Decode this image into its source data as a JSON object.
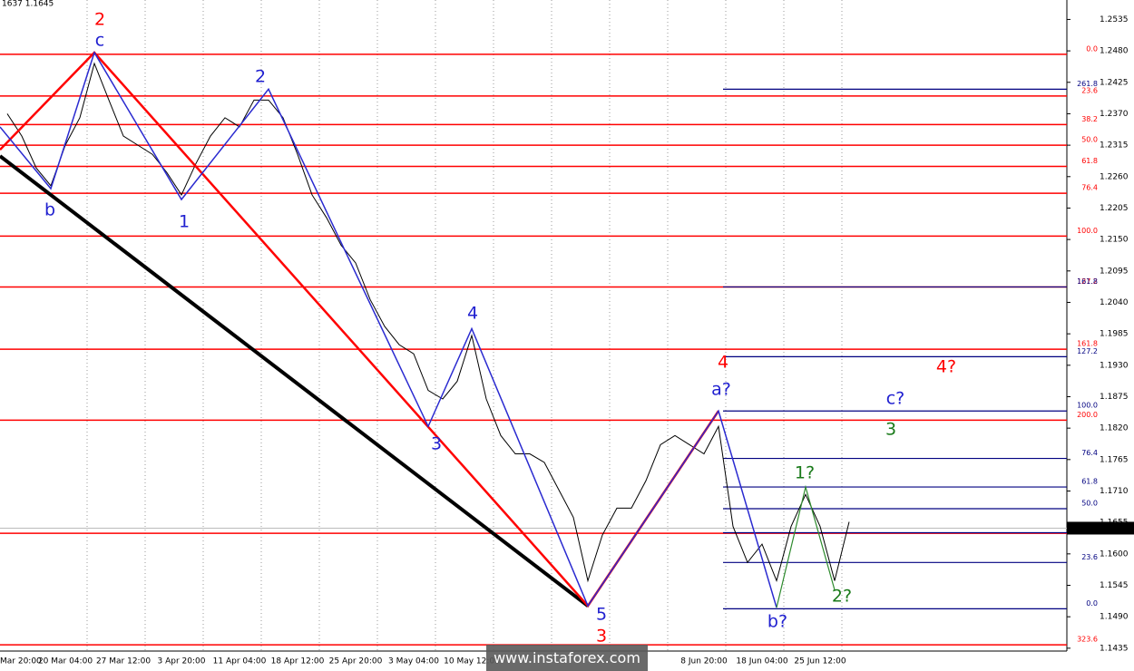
{
  "chart_data": {
    "type": "line",
    "header": "1637 1.1645",
    "categories": [
      "Mar 20:00",
      null,
      null,
      null,
      "20 Mar 04:00",
      null,
      null,
      null,
      "27 Mar 12:00",
      null,
      null,
      null,
      "3 Apr 20:00",
      null,
      null,
      null,
      "11 Apr 04:00",
      null,
      null,
      null,
      "18 Apr 12:00",
      null,
      null,
      null,
      "25 Apr 20:00",
      null,
      null,
      null,
      "3 May 04:00",
      null,
      null,
      null,
      "10 May 12:00",
      null,
      null,
      null,
      null,
      null,
      null,
      null,
      null,
      null,
      null,
      null,
      null,
      null,
      null,
      null,
      "8 Jun 20:00",
      null,
      null,
      null,
      "18 Jun 04:00",
      null,
      null,
      null,
      "25 Jun 12:00",
      null,
      null,
      null,
      null,
      null,
      null,
      null,
      null,
      null,
      null,
      null,
      null,
      null,
      null,
      null,
      null,
      null
    ],
    "values": [
      1.237,
      1.2331,
      1.2275,
      1.2244,
      1.2315,
      1.2363,
      1.2458,
      1.2394,
      1.2331,
      1.2315,
      1.2299,
      1.2267,
      1.2228,
      1.2283,
      1.2331,
      1.2363,
      1.2347,
      1.2394,
      1.2394,
      1.2363,
      1.2299,
      1.2228,
      1.2188,
      1.214,
      1.2109,
      1.2045,
      1.1998,
      1.1966,
      1.195,
      1.1886,
      1.1871,
      1.1902,
      1.1982,
      1.1871,
      1.1807,
      1.1775,
      1.1775,
      1.176,
      1.1712,
      1.1664,
      1.1553,
      1.1633,
      1.168,
      1.168,
      1.1728,
      1.1791,
      1.1807,
      1.1791,
      1.1775,
      1.1823,
      1.1648,
      1.1585,
      1.1617,
      1.1553,
      1.1648,
      1.1704,
      1.1648,
      1.1553,
      1.1656,
      null,
      null,
      null,
      null,
      null,
      null,
      null,
      null,
      null,
      null,
      null,
      null,
      null,
      null,
      null
    ],
    "color": "#000000",
    "ylim": [
      1.143,
      1.2569
    ],
    "yticks": [
      1.2535,
      {
        "value": 1.248,
        "label": "1.2480"
      },
      1.2425,
      {
        "value": 1.237,
        "label": "1.2370"
      },
      1.2315,
      {
        "value": 1.226,
        "label": "1.2260"
      },
      1.2205,
      {
        "value": 1.215,
        "label": "1.2150"
      },
      1.2095,
      {
        "value": 1.204,
        "label": "1.2040"
      },
      1.1985,
      {
        "value": 1.193,
        "label": "1.1930"
      },
      1.1875,
      {
        "value": 1.182,
        "label": "1.1820"
      },
      1.1765,
      {
        "value": 1.171,
        "label": "1.1710"
      },
      1.1655,
      {
        "value": 1.16,
        "label": "1.1600"
      },
      1.1545,
      {
        "value": 1.149,
        "label": "1.1490"
      },
      1.1435
    ],
    "grid": true,
    "current_price": 1.1645,
    "fib_red": {
      "color": "#ff0000",
      "levels": [
        {
          "label": "0.0",
          "value": 1.2474
        },
        {
          "label": "23.6",
          "value": 1.2401
        },
        {
          "label": "38.2",
          "value": 1.2351
        },
        {
          "label": "50.0",
          "value": 1.2315
        },
        {
          "label": "61.8",
          "value": 1.2278
        },
        {
          "label": "76.4",
          "value": 1.2231
        },
        {
          "label": "100.0",
          "value": 1.2156
        },
        {
          "label": "127.2",
          "value": 1.2067
        },
        {
          "label": "161.8",
          "value": 1.1958
        },
        {
          "label": "200.0",
          "value": 1.1834
        },
        {
          "label": "261.8",
          "value": 1.1636
        },
        {
          "label": "323.6",
          "value": 1.1441
        }
      ]
    },
    "fib_blue": {
      "color": "#000080",
      "levels": [
        {
          "label": "261.8",
          "value": 1.2413
        },
        {
          "label": "161.8",
          "value": 1.2067
        },
        {
          "label": "127.2",
          "value": 1.1945
        },
        {
          "label": "100.0",
          "value": 1.185
        },
        {
          "label": "76.4",
          "value": 1.1767
        },
        {
          "label": "61.8",
          "value": 1.1717
        },
        {
          "label": "50.0",
          "value": 1.1679
        },
        {
          "label": "38.2",
          "value": 1.1637
        },
        {
          "label": "23.6",
          "value": 1.1585
        },
        {
          "label": "0.0",
          "value": 1.1504
        }
      ]
    },
    "wave_lines": [
      {
        "color": "#000000",
        "width": 4,
        "points": [
          {
            "slot": 0,
            "price": 1.2296
          },
          {
            "slot": 40,
            "price": 1.1509
          }
        ]
      },
      {
        "color": "#ff0000",
        "width": 2.5,
        "points": [
          {
            "slot": 0,
            "price": 1.2307
          },
          {
            "slot": 6,
            "price": 1.2477
          },
          {
            "slot": 40,
            "price": 1.1509
          },
          {
            "slot": 49,
            "price": 1.185
          }
        ]
      },
      {
        "color": "#2a2ad0",
        "width": 1.5,
        "points": [
          {
            "slot": 0,
            "price": 1.2347
          },
          {
            "slot": 3,
            "price": 1.2239
          },
          {
            "slot": 6,
            "price": 1.2477
          },
          {
            "slot": 12,
            "price": 1.222
          },
          {
            "slot": 18,
            "price": 1.2413
          },
          {
            "slot": 29,
            "price": 1.1823
          },
          {
            "slot": 32,
            "price": 1.1994
          },
          {
            "slot": 40,
            "price": 1.1509
          },
          {
            "slot": 49,
            "price": 1.185
          },
          {
            "slot": 53,
            "price": 1.1506
          }
        ]
      },
      {
        "color": "#2e8b2e",
        "width": 1.2,
        "points": [
          {
            "slot": 53,
            "price": 1.1506
          },
          {
            "slot": 55,
            "price": 1.1717
          },
          {
            "slot": 57,
            "price": 1.1537
          }
        ]
      }
    ],
    "wave_labels": [
      {
        "text": "2",
        "color": "#ff0000"
      },
      {
        "text": "c",
        "color": "#2020d0"
      },
      {
        "text": "b",
        "color": "#2020d0"
      },
      {
        "text": "1",
        "color": "#2020d0"
      },
      {
        "text": "2",
        "color": "#2020d0"
      },
      {
        "text": "4",
        "color": "#2020d0"
      },
      {
        "text": "3",
        "color": "#2020d0"
      },
      {
        "text": "5",
        "color": "#2020d0"
      },
      {
        "text": "3",
        "color": "#ff0000"
      },
      {
        "text": "4",
        "color": "#ff0000"
      },
      {
        "text": "a?",
        "color": "#2020d0"
      },
      {
        "text": "c?",
        "color": "#2020d0"
      },
      {
        "text": "3",
        "color": "#1a7a1a"
      },
      {
        "text": "4?",
        "color": "#ff0000"
      },
      {
        "text": "1?",
        "color": "#1a7a1a"
      },
      {
        "text": "2?",
        "color": "#1a7a1a"
      },
      {
        "text": "b?",
        "color": "#2020d0"
      }
    ],
    "watermark": "www.instaforex.com"
  }
}
